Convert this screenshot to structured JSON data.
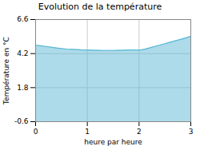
{
  "chart_data": {
    "type": "area",
    "title": "Evolution de la température",
    "xlabel": "heure par heure",
    "ylabel": "Température en °C",
    "x": [
      0,
      0.1,
      0.2,
      0.3,
      0.4,
      0.5,
      0.6,
      0.7,
      0.8,
      0.9,
      1.0,
      1.1,
      1.2,
      1.3,
      1.4,
      1.5,
      1.6,
      1.7,
      1.8,
      1.9,
      2.0,
      2.1,
      2.2,
      2.3,
      2.4,
      2.5,
      2.6,
      2.7,
      2.8,
      2.9,
      3.0
    ],
    "values": [
      4.8,
      4.75,
      4.7,
      4.65,
      4.6,
      4.55,
      4.52,
      4.5,
      4.48,
      4.46,
      4.45,
      4.44,
      4.43,
      4.42,
      4.42,
      4.42,
      4.43,
      4.44,
      4.45,
      4.45,
      4.45,
      4.5,
      4.6,
      4.7,
      4.8,
      4.9,
      5.0,
      5.1,
      5.2,
      5.3,
      5.42
    ],
    "color": "#5bb8d4",
    "xlim": [
      0,
      3
    ],
    "ylim": [
      -0.6,
      6.6
    ],
    "xticks": [
      0,
      1,
      2,
      3
    ],
    "yticks": [
      -0.6,
      1.8,
      4.2,
      6.6
    ],
    "grid": true
  }
}
